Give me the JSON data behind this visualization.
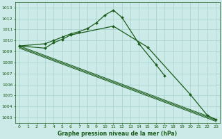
{
  "title": "Graphe pression niveau de la mer (hPa)",
  "background_color": "#cceae7",
  "grid_color": "#aad4d0",
  "line_color": "#1a5c1a",
  "ylim": [
    1002.5,
    1013.5
  ],
  "xlim": [
    -0.5,
    23.5
  ],
  "yticks": [
    1003,
    1004,
    1005,
    1006,
    1007,
    1008,
    1009,
    1010,
    1011,
    1012,
    1013
  ],
  "xticks": [
    0,
    1,
    2,
    3,
    4,
    5,
    6,
    7,
    8,
    9,
    10,
    11,
    12,
    13,
    14,
    15,
    16,
    17,
    18,
    19,
    20,
    21,
    22,
    23
  ],
  "s1_x": [
    0,
    3,
    4,
    5,
    6,
    7,
    8,
    9,
    10,
    11,
    12,
    14,
    16,
    17
  ],
  "s1_y": [
    1009.5,
    1009.7,
    1010.0,
    1010.3,
    1010.6,
    1010.8,
    1011.1,
    1011.6,
    1012.3,
    1012.75,
    1012.1,
    1009.7,
    1007.8,
    1006.8
  ],
  "s2_x": [
    0,
    3,
    4,
    5,
    6,
    11,
    15,
    20,
    22,
    23
  ],
  "s2_y": [
    1009.5,
    1009.3,
    1009.8,
    1010.1,
    1010.5,
    1011.3,
    1009.4,
    1005.1,
    1003.2,
    1002.8
  ],
  "straight_lines": [
    {
      "x0": 0,
      "y0": 1009.5,
      "x1": 23,
      "y1": 1002.85
    },
    {
      "x0": 0,
      "y0": 1009.4,
      "x1": 23,
      "y1": 1002.75
    },
    {
      "x0": 0,
      "y0": 1009.3,
      "x1": 23,
      "y1": 1002.65
    }
  ]
}
